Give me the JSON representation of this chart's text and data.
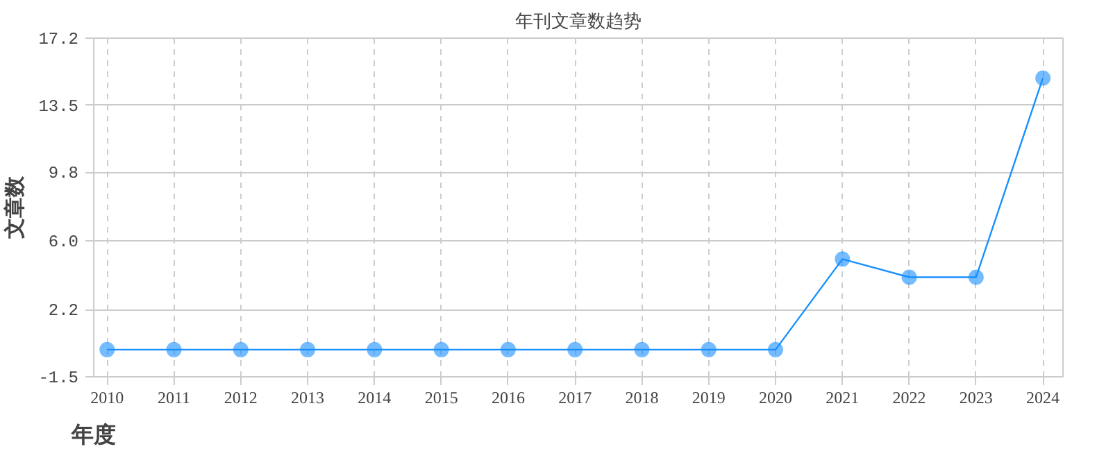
{
  "chart_data": {
    "type": "line",
    "title": "年刊文章数趋势",
    "xlabel": "年度",
    "ylabel": "文章数",
    "categories": [
      "2010",
      "2011",
      "2012",
      "2013",
      "2014",
      "2015",
      "2016",
      "2017",
      "2018",
      "2019",
      "2020",
      "2021",
      "2022",
      "2023",
      "2024"
    ],
    "series": [
      {
        "color": "#1890ff",
        "values": [
          0,
          0,
          0,
          0,
          0,
          0,
          0,
          0,
          0,
          0,
          0,
          5,
          4,
          4,
          15
        ]
      }
    ],
    "ylim": [
      -1.5,
      17.2
    ],
    "yticks": [
      -1.5,
      2.2,
      {
        "value": 6,
        "label": "6.0"
      },
      9.8,
      13.5,
      17.2
    ],
    "grid": true,
    "marker": "circle",
    "line_style": "solid"
  }
}
